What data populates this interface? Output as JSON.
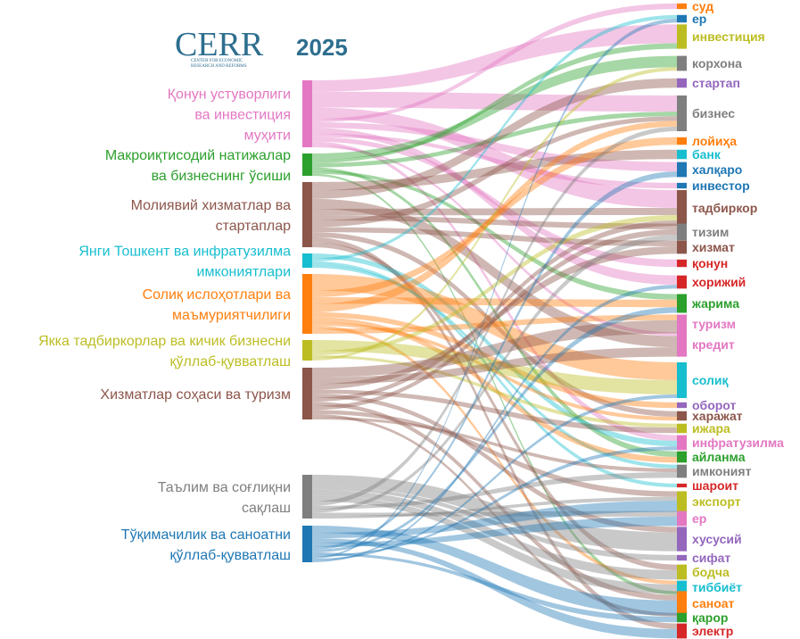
{
  "header": {
    "logo_text": "CERR",
    "logo_subtitle_1": "CENTER FOR ECONOMIC",
    "logo_subtitle_2": "RESEARCH AND REFORMS",
    "year": "2025",
    "logo_color": "#2d6e8e",
    "year_color": "#2d6e8e"
  },
  "sources": [
    {
      "id": "s0",
      "lines": [
        "Қонун устуворлиги",
        "ва инвестиция",
        "муҳити"
      ],
      "color": "#e377c2"
    },
    {
      "id": "s1",
      "lines": [
        "Макроиқтисодий натижалар",
        "ва бизнеснинг ўсиши"
      ],
      "color": "#2ca02c"
    },
    {
      "id": "s2",
      "lines": [
        "Молиявий хизматлар ва",
        "стартаплар"
      ],
      "color": "#8c564b"
    },
    {
      "id": "s3",
      "lines": [
        "Янги Тошкент ва инфратузилма",
        "имкониятлари"
      ],
      "color": "#17becf"
    },
    {
      "id": "s4",
      "lines": [
        "Солиқ ислоҳотлари ва",
        "маъмуриятчилиги"
      ],
      "color": "#ff7f0e"
    },
    {
      "id": "s5",
      "lines": [
        "Якка тадбиркорлар ва кичик бизнесни",
        "қўллаб-қувватлаш"
      ],
      "color": "#bcbd22"
    },
    {
      "id": "s6",
      "lines": [
        "Хизматлар соҳаси ва туризм"
      ],
      "color": "#8c564b"
    },
    {
      "id": "s7",
      "lines": [
        "Таълим ва соғлиқни",
        "сақлаш"
      ],
      "color": "#7f7f7f"
    },
    {
      "id": "s8",
      "lines": [
        "Тўқимачилик ва саноатни",
        "қўллаб-қувватлаш"
      ],
      "color": "#1f77b4"
    }
  ],
  "targets": [
    {
      "label": "суд",
      "color": "#ff7f0e"
    },
    {
      "label": "ер",
      "color": "#1f77b4"
    },
    {
      "label": "инвестиция",
      "color": "#bcbd22"
    },
    {
      "label": "корхона",
      "color": "#7f7f7f"
    },
    {
      "label": "стартап",
      "color": "#9467bd"
    },
    {
      "label": "бизнес",
      "color": "#7f7f7f"
    },
    {
      "label": "лойиҳа",
      "color": "#ff7f0e"
    },
    {
      "label": "банк",
      "color": "#17becf"
    },
    {
      "label": "халқаро",
      "color": "#1f77b4"
    },
    {
      "label": "инвестор",
      "color": "#1f77b4"
    },
    {
      "label": "тадбиркор",
      "color": "#8c564b"
    },
    {
      "label": "тизим",
      "color": "#7f7f7f"
    },
    {
      "label": "хизмат",
      "color": "#8c564b"
    },
    {
      "label": "қонун",
      "color": "#d62728"
    },
    {
      "label": "хорижий",
      "color": "#d62728"
    },
    {
      "label": "жарима",
      "color": "#2ca02c"
    },
    {
      "label": "туризм",
      "color": "#e377c2"
    },
    {
      "label": "кредит",
      "color": "#e377c2"
    },
    {
      "label": "солиқ",
      "color": "#17becf"
    },
    {
      "label": "оборот",
      "color": "#9467bd"
    },
    {
      "label": "харажат",
      "color": "#8c564b"
    },
    {
      "label": "ижара",
      "color": "#bcbd22"
    },
    {
      "label": "инфратузилма",
      "color": "#e377c2"
    },
    {
      "label": "айланма",
      "color": "#2ca02c"
    },
    {
      "label": "имконият",
      "color": "#7f7f7f"
    },
    {
      "label": "шароит",
      "color": "#d62728"
    },
    {
      "label": "экспорт",
      "color": "#bcbd22"
    },
    {
      "label": "ер",
      "color": "#e377c2"
    },
    {
      "label": "хусусий",
      "color": "#9467bd"
    },
    {
      "label": "сифат",
      "color": "#9467bd"
    },
    {
      "label": "бодча",
      "color": "#bcbd22"
    },
    {
      "label": "тиббиёт",
      "color": "#17becf"
    },
    {
      "label": "саноат",
      "color": "#ff7f0e"
    },
    {
      "label": "қарор",
      "color": "#2ca02c"
    },
    {
      "label": "электр",
      "color": "#d62728"
    }
  ],
  "flows": [
    [
      0,
      2,
      10
    ],
    [
      0,
      5,
      14
    ],
    [
      0,
      10,
      10
    ],
    [
      0,
      0,
      3
    ],
    [
      0,
      8,
      5
    ],
    [
      0,
      14,
      5
    ],
    [
      0,
      9,
      3
    ],
    [
      0,
      13,
      4
    ],
    [
      0,
      22,
      3
    ],
    [
      0,
      17,
      2
    ],
    [
      1,
      3,
      6
    ],
    [
      1,
      2,
      3
    ],
    [
      1,
      5,
      4
    ],
    [
      1,
      23,
      3
    ],
    [
      1,
      15,
      3
    ],
    [
      1,
      32,
      2
    ],
    [
      2,
      7,
      5
    ],
    [
      2,
      4,
      5
    ],
    [
      2,
      17,
      6
    ],
    [
      2,
      10,
      4
    ],
    [
      2,
      11,
      3
    ],
    [
      2,
      5,
      4
    ],
    [
      2,
      12,
      3
    ],
    [
      2,
      20,
      3
    ],
    [
      2,
      34,
      3
    ],
    [
      2,
      30,
      3
    ],
    [
      3,
      22,
      3
    ],
    [
      3,
      1,
      2
    ],
    [
      3,
      25,
      2
    ],
    [
      3,
      24,
      2
    ],
    [
      4,
      18,
      10
    ],
    [
      4,
      6,
      4
    ],
    [
      4,
      15,
      4
    ],
    [
      4,
      5,
      5
    ],
    [
      4,
      19,
      3
    ],
    [
      4,
      23,
      3
    ],
    [
      4,
      20,
      2
    ],
    [
      4,
      31,
      2
    ],
    [
      4,
      16,
      3
    ],
    [
      5,
      18,
      8
    ],
    [
      5,
      10,
      3
    ],
    [
      5,
      21,
      2
    ],
    [
      5,
      3,
      2
    ],
    [
      6,
      16,
      7
    ],
    [
      6,
      17,
      5
    ],
    [
      6,
      12,
      4
    ],
    [
      6,
      21,
      3
    ],
    [
      6,
      28,
      3
    ],
    [
      6,
      10,
      3
    ],
    [
      6,
      32,
      3
    ],
    [
      6,
      11,
      3
    ],
    [
      6,
      26,
      3
    ],
    [
      6,
      33,
      2
    ],
    [
      6,
      24,
      2
    ],
    [
      7,
      28,
      10
    ],
    [
      7,
      29,
      3
    ],
    [
      7,
      30,
      5
    ],
    [
      7,
      31,
      5
    ],
    [
      7,
      5,
      4
    ],
    [
      7,
      24,
      3
    ],
    [
      7,
      11,
      3
    ],
    [
      7,
      27,
      3
    ],
    [
      7,
      26,
      2
    ],
    [
      8,
      32,
      8
    ],
    [
      8,
      26,
      6
    ],
    [
      8,
      34,
      5
    ],
    [
      8,
      27,
      5
    ],
    [
      8,
      8,
      3
    ],
    [
      8,
      15,
      3
    ],
    [
      8,
      33,
      3
    ],
    [
      8,
      22,
      2
    ],
    [
      8,
      1,
      2
    ],
    [
      8,
      18,
      2
    ],
    [
      8,
      14,
      2
    ]
  ]
}
